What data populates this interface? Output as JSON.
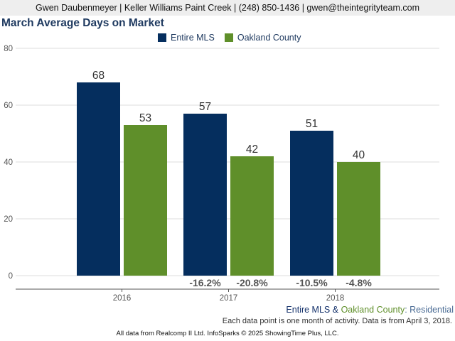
{
  "header": {
    "contact": "Gwen Daubenmeyer | Keller Williams Paint Creek | (248) 850-1436 | gwen@theintegrityteam.com"
  },
  "colors": {
    "entire_mls": "#052e5e",
    "oakland_county": "#5f8f2a",
    "gridline": "#dcdcdc"
  },
  "legend": {
    "items": [
      {
        "label": "Entire MLS",
        "color": "#052e5e"
      },
      {
        "label": "Oakland County",
        "color": "#5f8f2a"
      }
    ]
  },
  "footer": {
    "series_mls": "Entire MLS",
    "series_sep": "&",
    "series_oak": "Oakland County",
    "series_suffix": ": Residential",
    "note": "Each data point is one month of activity. Data is from April 3, 2018.",
    "source": "All data from Realcomp II Ltd. InfoSparks © 2025 ShowingTime Plus, LLC."
  },
  "chart_data": {
    "type": "bar",
    "title": "March Average Days on Market",
    "categories": [
      "2016",
      "2017",
      "2018"
    ],
    "series": [
      {
        "name": "Entire MLS",
        "values": [
          68,
          57,
          51
        ],
        "value_labels": [
          "68",
          "57",
          "51"
        ],
        "change_labels": [
          "",
          "-16.2%",
          "-10.5%"
        ]
      },
      {
        "name": "Oakland County",
        "values": [
          53,
          42,
          40
        ],
        "value_labels": [
          "53",
          "42",
          "40"
        ],
        "change_labels": [
          "",
          "-20.8%",
          "-4.8%"
        ]
      }
    ],
    "ylim": [
      0,
      80
    ],
    "yticks": [
      0,
      20,
      40,
      60,
      80
    ],
    "grid": true,
    "legend_position": "top-center"
  }
}
